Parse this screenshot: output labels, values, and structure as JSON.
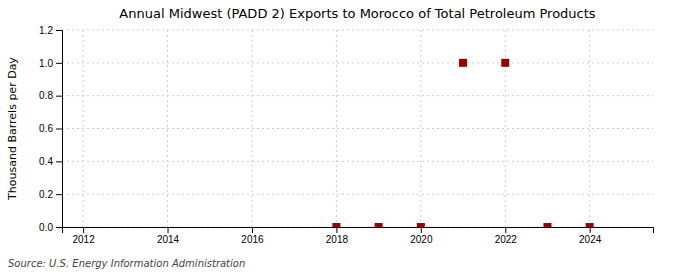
{
  "chart_data": {
    "type": "scatter",
    "title": "Annual Midwest (PADD 2) Exports to Morocco of Total Petroleum Products",
    "ylabel": "Thousand Barrels per Day",
    "annotations": [
      "Source: U.S. Energy Information Administration"
    ],
    "x": [
      2018,
      2019,
      2020,
      2021,
      2022,
      2023,
      2024
    ],
    "values": [
      0.0,
      0.0,
      0.0,
      1.0,
      1.0,
      0.0,
      0.0
    ],
    "color": "#990000",
    "marker": "square",
    "xlim": [
      2011.5,
      2025.5
    ],
    "ylim": [
      0,
      1.2
    ],
    "xticks": [
      2012,
      2014,
      2016,
      2018,
      2020,
      2022,
      2024
    ],
    "yticks": [
      {
        "value": 0.0,
        "label": "0.0"
      },
      0.2,
      0.4,
      0.6,
      0.8,
      {
        "value": 1.0,
        "label": "1.0"
      },
      1.2
    ],
    "grid": true
  }
}
